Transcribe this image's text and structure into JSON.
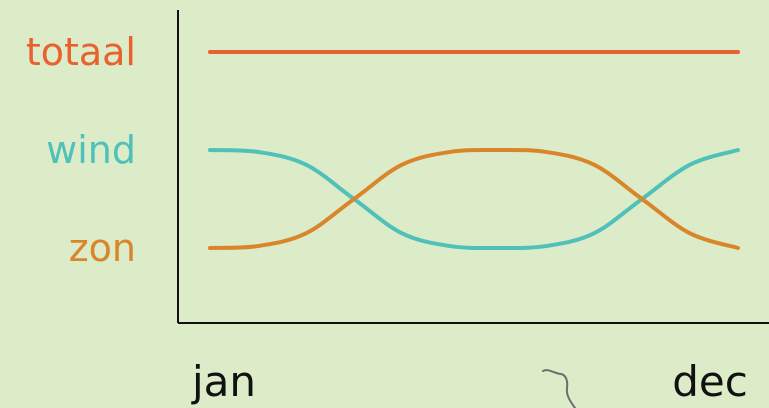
{
  "chart_data": {
    "type": "line",
    "title": "",
    "xlabel": "",
    "ylabel": "",
    "x_ticks": [
      "jan",
      "dec"
    ],
    "grid": false,
    "legend": "left, inline labels",
    "series": [
      {
        "name": "totaal",
        "color": "#e8622f",
        "values": [
          2,
          2,
          2,
          2,
          2,
          2,
          2,
          2,
          2,
          2,
          2,
          2
        ]
      },
      {
        "name": "wind",
        "color": "#4fc1b8",
        "values": [
          1,
          0.98,
          0.85,
          0.5,
          0.15,
          0.02,
          0,
          0.02,
          0.15,
          0.5,
          0.85,
          1
        ]
      },
      {
        "name": "zon",
        "color": "#d9862a",
        "values": [
          0,
          0.02,
          0.15,
          0.5,
          0.85,
          0.98,
          1,
          0.98,
          0.85,
          0.5,
          0.15,
          0
        ]
      }
    ]
  }
}
